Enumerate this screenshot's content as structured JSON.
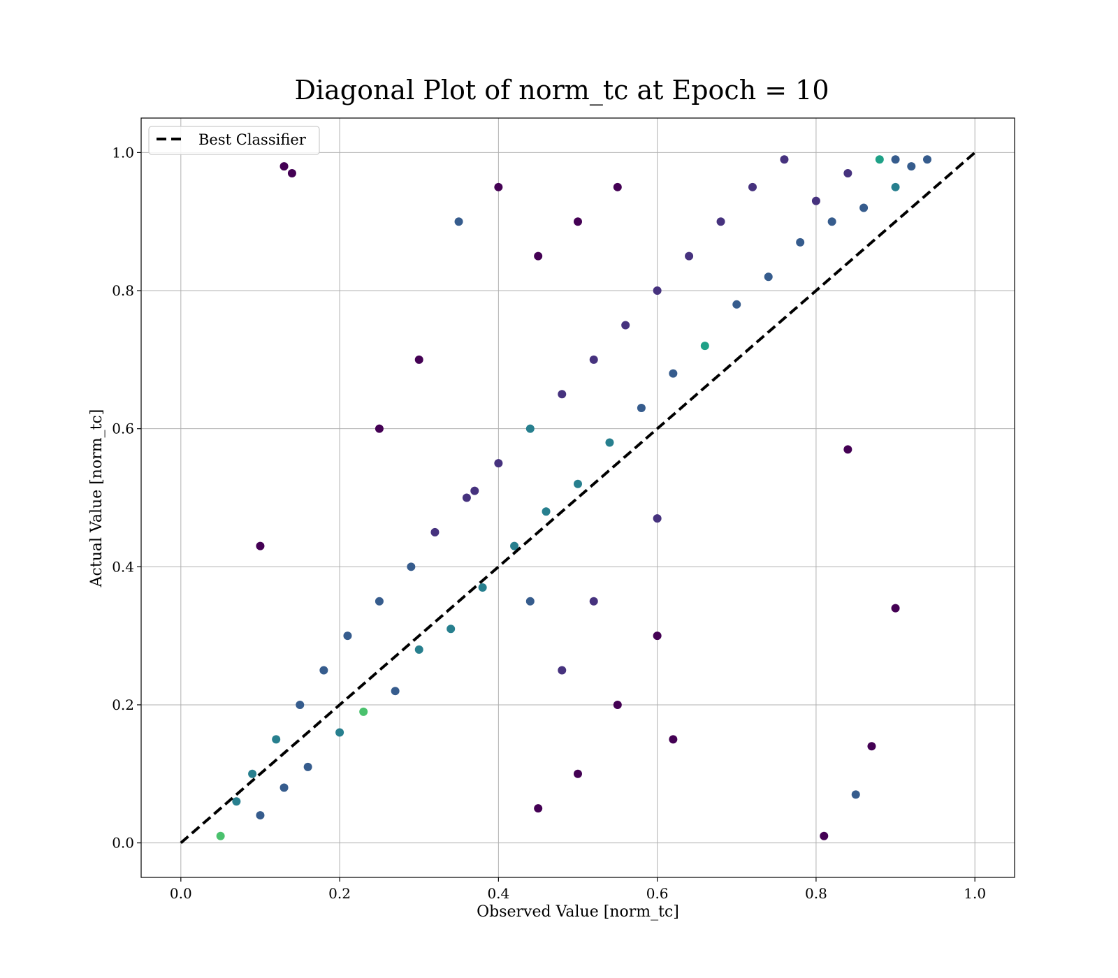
{
  "chart_data": {
    "type": "scatter",
    "title": "Diagonal Plot of norm_tc at Epoch = 10",
    "xlabel": "Observed Value [norm_tc]",
    "ylabel": "Actual Value [norm_tc]",
    "xlim": [
      -0.05,
      1.05
    ],
    "ylim": [
      -0.05,
      1.05
    ],
    "xticks": [
      0.0,
      0.2,
      0.4,
      0.6,
      0.8,
      1.0
    ],
    "yticks": [
      0.0,
      0.2,
      0.4,
      0.6,
      0.8,
      1.0
    ],
    "xtick_labels": [
      "0.0",
      "0.2",
      "0.4",
      "0.6",
      "0.8",
      "1.0"
    ],
    "ytick_labels": [
      "0.0",
      "0.2",
      "0.4",
      "0.6",
      "0.8",
      "1.0"
    ],
    "grid": true,
    "colormap": "viridis",
    "reference_line": {
      "name": "Best Classifier",
      "x": [
        0.0,
        1.0
      ],
      "y": [
        0.0,
        1.0
      ],
      "style": "dashed",
      "color": "#000000"
    },
    "legend": {
      "position": "top-left",
      "entries": [
        "Best Classifier"
      ]
    },
    "series": [
      {
        "points": [
          [
            0.05,
            0.01
          ],
          [
            0.07,
            0.06
          ],
          [
            0.09,
            0.1
          ],
          [
            0.1,
            0.04
          ],
          [
            0.12,
            0.15
          ],
          [
            0.13,
            0.08
          ],
          [
            0.15,
            0.2
          ],
          [
            0.16,
            0.11
          ],
          [
            0.18,
            0.25
          ],
          [
            0.2,
            0.16
          ],
          [
            0.21,
            0.3
          ],
          [
            0.23,
            0.19
          ],
          [
            0.25,
            0.35
          ],
          [
            0.27,
            0.22
          ],
          [
            0.29,
            0.4
          ],
          [
            0.3,
            0.28
          ],
          [
            0.32,
            0.45
          ],
          [
            0.34,
            0.31
          ],
          [
            0.36,
            0.5
          ],
          [
            0.38,
            0.37
          ],
          [
            0.4,
            0.55
          ],
          [
            0.42,
            0.43
          ],
          [
            0.44,
            0.6
          ],
          [
            0.46,
            0.48
          ],
          [
            0.48,
            0.65
          ],
          [
            0.5,
            0.52
          ],
          [
            0.52,
            0.7
          ],
          [
            0.54,
            0.58
          ],
          [
            0.56,
            0.75
          ],
          [
            0.58,
            0.63
          ],
          [
            0.6,
            0.8
          ],
          [
            0.62,
            0.68
          ],
          [
            0.64,
            0.85
          ],
          [
            0.66,
            0.72
          ],
          [
            0.68,
            0.9
          ],
          [
            0.7,
            0.78
          ],
          [
            0.72,
            0.95
          ],
          [
            0.74,
            0.82
          ],
          [
            0.76,
            0.99
          ],
          [
            0.78,
            0.87
          ],
          [
            0.8,
            0.93
          ],
          [
            0.82,
            0.9
          ],
          [
            0.84,
            0.97
          ],
          [
            0.86,
            0.92
          ],
          [
            0.88,
            0.99
          ],
          [
            0.9,
            0.95
          ],
          [
            0.92,
            0.98
          ],
          [
            0.94,
            0.99
          ],
          [
            0.45,
            0.05
          ],
          [
            0.5,
            0.1
          ],
          [
            0.55,
            0.2
          ],
          [
            0.6,
            0.3
          ],
          [
            0.62,
            0.15
          ],
          [
            0.48,
            0.25
          ],
          [
            0.52,
            0.35
          ],
          [
            0.35,
            0.9
          ],
          [
            0.4,
            0.95
          ],
          [
            0.45,
            0.85
          ],
          [
            0.5,
            0.9
          ],
          [
            0.3,
            0.7
          ],
          [
            0.25,
            0.6
          ],
          [
            0.55,
            0.95
          ],
          [
            0.13,
            0.98
          ],
          [
            0.14,
            0.97
          ],
          [
            0.9,
            0.34
          ],
          [
            0.87,
            0.14
          ],
          [
            0.85,
            0.07
          ],
          [
            0.81,
            0.01
          ],
          [
            0.1,
            0.43
          ],
          [
            0.84,
            0.57
          ],
          [
            0.37,
            0.51
          ],
          [
            0.44,
            0.35
          ],
          [
            0.9,
            0.99
          ],
          [
            0.6,
            0.47
          ]
        ]
      }
    ]
  }
}
